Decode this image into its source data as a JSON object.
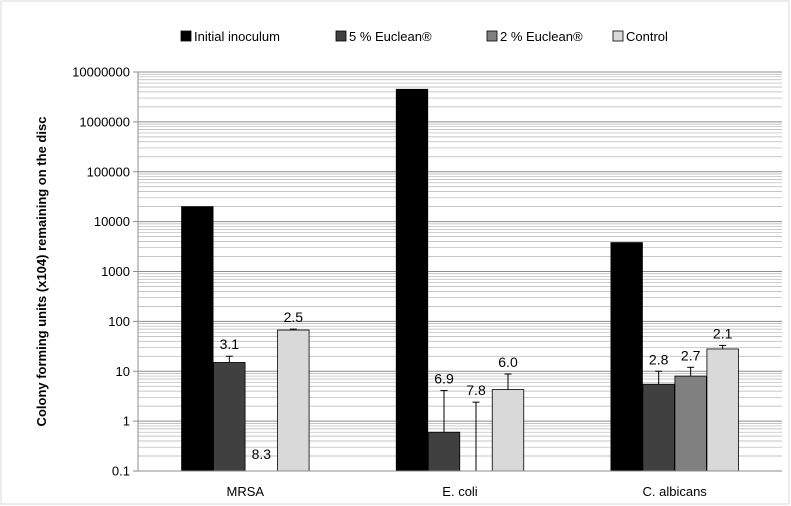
{
  "chart_data": {
    "type": "bar",
    "yscale": "log",
    "ylim": [
      0.1,
      10000000
    ],
    "ylabel": "Colony forming units (x104) remaining on the disc",
    "y_ticks": [
      "0.1",
      "1",
      "10",
      "100",
      "1000",
      "10000",
      "100000",
      "1000000",
      "10000000"
    ],
    "categories": [
      "MRSA",
      "E. coli",
      "C. albicans"
    ],
    "legend_position": "top",
    "grid": true,
    "series": [
      {
        "name": "Initial inoculum",
        "color": "#000000",
        "values": [
          20000,
          4500000,
          3800
        ],
        "errors": [
          null,
          null,
          null
        ],
        "labels": [
          null,
          null,
          null
        ]
      },
      {
        "name": "5 % Euclean®",
        "color": "#404040",
        "values": [
          15,
          0.6,
          5.5
        ],
        "errors": [
          5,
          3.5,
          4.5
        ],
        "labels": [
          "3.1",
          "6.9",
          "2.8"
        ]
      },
      {
        "name": "2 % Euclean®",
        "color": "#808080",
        "values": [
          0.1,
          0.1,
          8
        ],
        "errors": [
          null,
          2.3,
          4
        ],
        "labels": [
          "8.3",
          "7.8",
          "2.7"
        ]
      },
      {
        "name": "Control",
        "color": "#d9d9d9",
        "values": [
          67,
          4.3,
          28
        ],
        "errors": [
          3,
          4.5,
          5
        ],
        "labels": [
          "2.5",
          "6.0",
          "2.1"
        ]
      }
    ]
  }
}
